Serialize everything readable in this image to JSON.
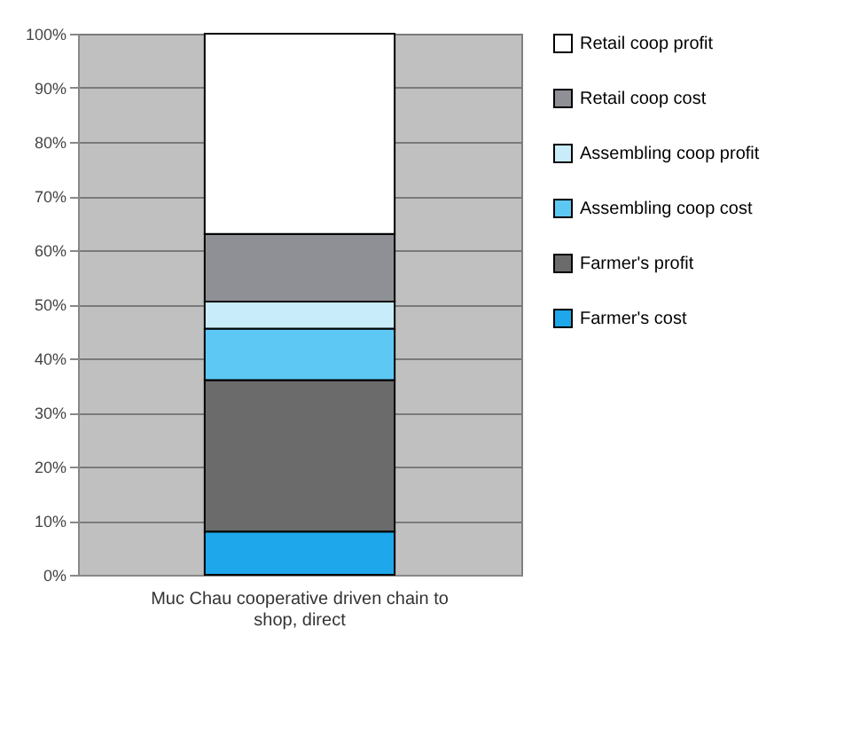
{
  "chart_data": {
    "type": "bar",
    "stacked": true,
    "categories": [
      "Muc Chau cooperative driven chain to shop, direct"
    ],
    "series": [
      {
        "name": "Farmer's cost",
        "color": "#1ea7ea",
        "values": [
          8
        ]
      },
      {
        "name": "Farmer's profit",
        "color": "#6b6b6b",
        "values": [
          28
        ]
      },
      {
        "name": "Assembling coop cost",
        "color": "#5ec8f5",
        "values": [
          9.5
        ]
      },
      {
        "name": "Assembling coop profit",
        "color": "#c8ecfa",
        "values": [
          5
        ]
      },
      {
        "name": "Retail coop cost",
        "color": "#8f8f96",
        "values": [
          12.5
        ]
      },
      {
        "name": "Retail coop profit",
        "color": "#ffffff",
        "values": [
          37
        ]
      }
    ],
    "ylim": [
      0,
      100
    ],
    "yticks": [
      {
        "value": 0,
        "label": "0%"
      },
      {
        "value": 10,
        "label": "10%"
      },
      {
        "value": 20,
        "label": "20%"
      },
      {
        "value": 30,
        "label": "30%"
      },
      {
        "value": 40,
        "label": "40%"
      },
      {
        "value": 50,
        "label": "50%"
      },
      {
        "value": 60,
        "label": "60%"
      },
      {
        "value": 70,
        "label": "70%"
      },
      {
        "value": 80,
        "label": "80%"
      },
      {
        "value": 90,
        "label": "90%"
      },
      {
        "value": 100,
        "label": "100%"
      }
    ],
    "grid": "y",
    "legend": "right"
  }
}
